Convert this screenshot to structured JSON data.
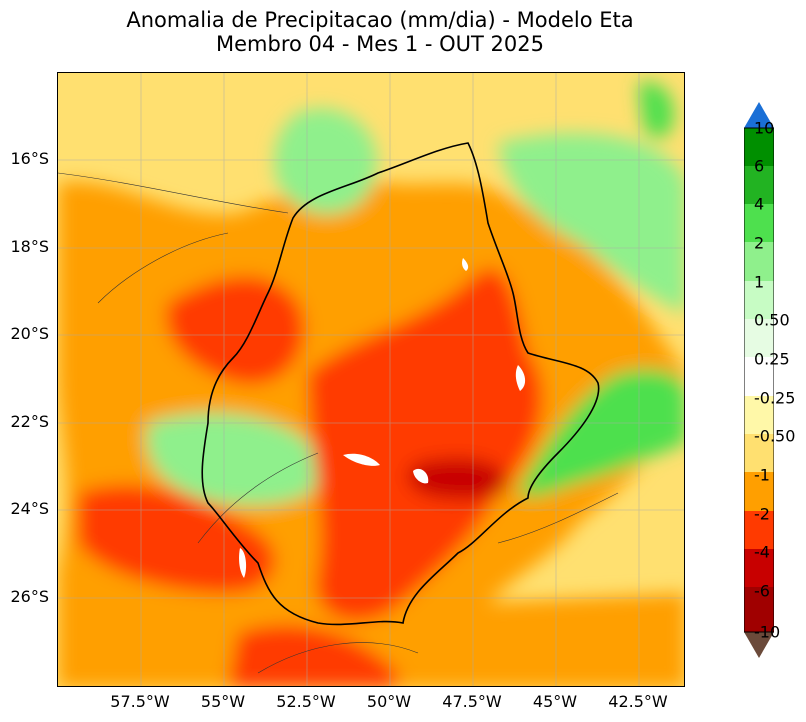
{
  "title": {
    "line1": "Anomalia de Precipitacao (mm/dia) - Modelo Eta",
    "line2": "Membro 04 - Mes 1 - OUT 2025"
  },
  "axes": {
    "lat_labels": [
      "16°S",
      "18°S",
      "20°S",
      "22°S",
      "24°S",
      "26°S"
    ],
    "lon_labels": [
      "57.5°W",
      "55°W",
      "52.5°W",
      "50°W",
      "47.5°W",
      "45°W",
      "42.5°W"
    ]
  },
  "colorbar": {
    "labels": [
      "10",
      "6",
      "4",
      "2",
      "1",
      "0.50",
      "0.25",
      "-0.25",
      "-0.50",
      "-1",
      "-2",
      "-4",
      "-6",
      "-10"
    ],
    "colors": {
      "above_10": "#1a6fd6",
      "6_10": "#008f00",
      "4_6": "#22b322",
      "2_4": "#4ee04e",
      "1_2": "#8ff08c",
      "0.50_1": "#c7fcc4",
      "0.25_0.50": "#e6fce3",
      "-0.25_0.25": "#ffffff",
      "-0.50_-0.25": "#fff8a8",
      "-1_-0.50": "#ffe070",
      "-2_-1": "#ff9f00",
      "-4_-2": "#ff3a00",
      "-6_-4": "#c80000",
      "-10_-6": "#a00000",
      "below_-10": "#6b4a3a"
    }
  },
  "map": {
    "region": "Southeast Brazil",
    "lat_range": [
      -28,
      -14
    ],
    "lon_range": [
      -60,
      -41
    ]
  }
}
